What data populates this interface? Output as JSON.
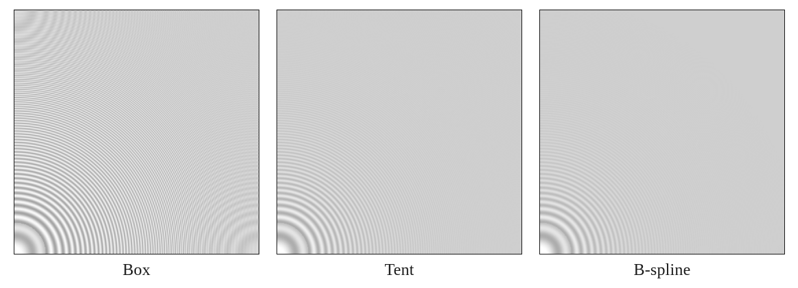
{
  "panels": [
    {
      "caption": "Box",
      "filter": "box"
    },
    {
      "caption": "Tent",
      "filter": "tent"
    },
    {
      "caption": "B-spline",
      "filter": "bspline"
    }
  ],
  "colors": {
    "border": "#1a1a1a",
    "background_gray": "#cfcfcf",
    "text": "#1a1a1a"
  }
}
